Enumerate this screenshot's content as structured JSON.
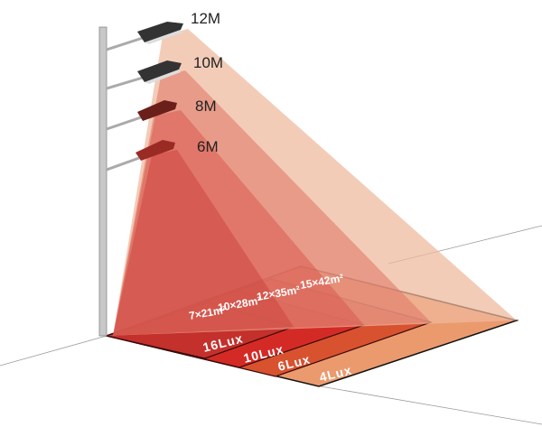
{
  "lamps": [
    {
      "height": "12M",
      "area": "15×42m²",
      "lux": "4Lux",
      "floor_color": "#eb9a6e",
      "beam_color": "#eeb99c"
    },
    {
      "height": "10M",
      "area": "12×35m²",
      "lux": "6Lux",
      "floor_color": "#d8522f",
      "beam_color": "#e07d6c"
    },
    {
      "height": "8M",
      "area": "10×28m²",
      "lux": "10Lux",
      "floor_color": "#d42a26",
      "beam_color": "#d95a50"
    },
    {
      "height": "6M",
      "area": "7×21m²",
      "lux": "16Lux",
      "floor_color": "#c4302c",
      "beam_color": "#cc3f3a"
    }
  ]
}
